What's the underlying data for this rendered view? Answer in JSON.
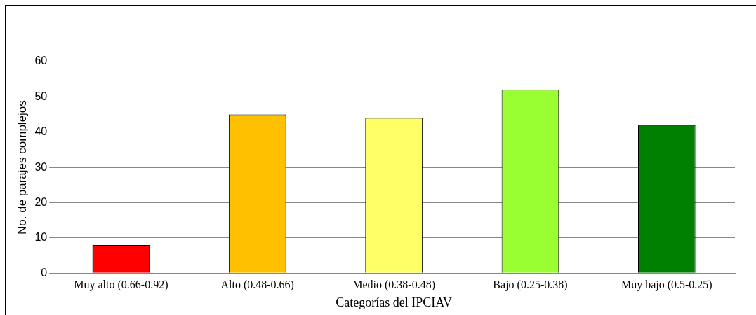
{
  "chart_data": {
    "type": "bar",
    "xlabel": "Categorías del IPCIAV",
    "ylabel": "No. de parajes complejos",
    "categories": [
      "Muy alto (0.66-0.92)",
      "Alto (0.48-0.66)",
      "Medio (0.38-0.48)",
      "Bajo (0.25-0.38)",
      "Muy bajo (0.5-0.25)"
    ],
    "values": [
      8,
      45,
      44,
      52,
      42
    ],
    "colors": [
      "#ff0000",
      "#ffc000",
      "#ffff66",
      "#99ff33",
      "#008000"
    ],
    "ylim": [
      0,
      60
    ],
    "yticks": [
      0,
      10,
      20,
      30,
      40,
      50,
      60
    ],
    "grid": "y",
    "legend": false
  }
}
